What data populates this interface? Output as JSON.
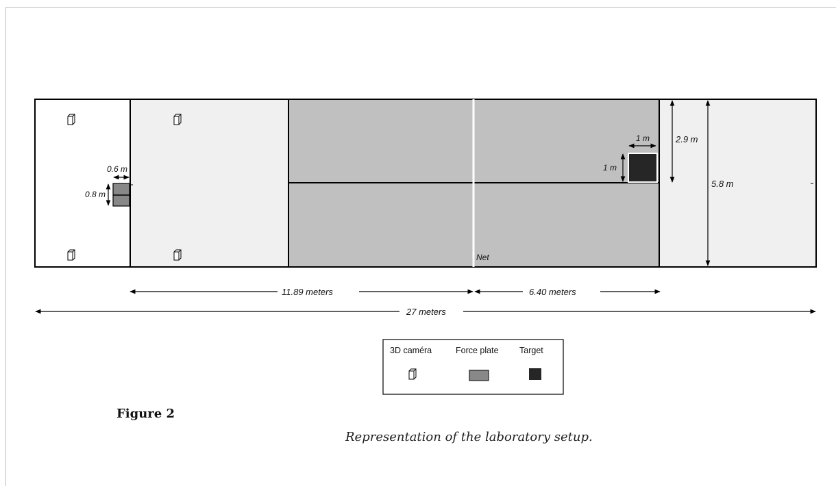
{
  "labels": {
    "net": "Net",
    "force_plate_width": "0.6 m",
    "force_plate_height": "0.8 m",
    "target_width": "1 m",
    "target_height": "1 m",
    "half_width": "2.9 m",
    "full_width": "5.8 m",
    "court_half_length": "11.89 meters",
    "service_length": "6.40 meters",
    "total_length": "27 meters"
  },
  "legend": {
    "camera": "3D caméra",
    "force_plate": "Force plate",
    "target": "Target"
  },
  "figure": {
    "title": "Figure 2",
    "caption": "Representation of the laboratory setup."
  },
  "colors": {
    "court": "#c0c0c0",
    "outer": "#f0f0f0",
    "force_plate": "#888888",
    "target": "#262626",
    "line": "#000000"
  }
}
